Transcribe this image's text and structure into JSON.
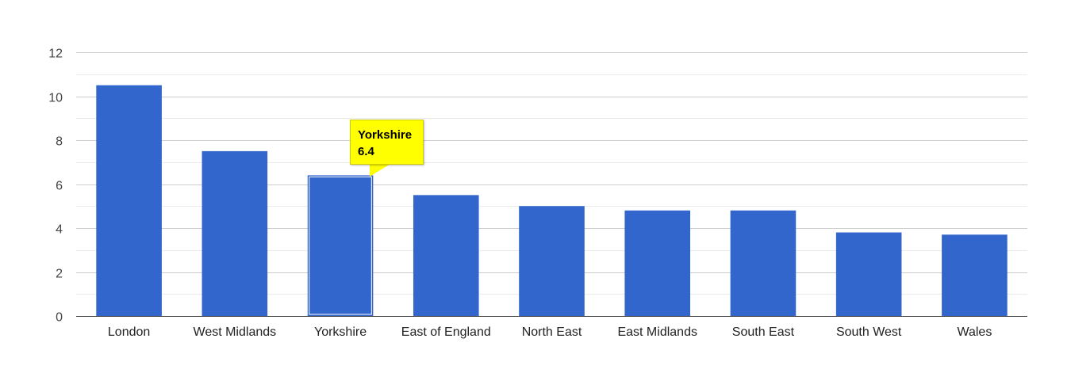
{
  "chart_data": {
    "type": "bar",
    "categories": [
      "London",
      "West Midlands",
      "Yorkshire",
      "East of England",
      "North East",
      "East Midlands",
      "South East",
      "South West",
      "Wales"
    ],
    "values": [
      10.5,
      7.5,
      6.4,
      5.5,
      5.0,
      4.8,
      4.8,
      3.8,
      3.7
    ],
    "ylim": [
      0,
      12
    ],
    "yticks": [
      0,
      2,
      4,
      6,
      8,
      10,
      12
    ],
    "title": "",
    "xlabel": "",
    "ylabel": "",
    "bar_color": "#3366cc",
    "grid": true,
    "highlighted_index": 2
  },
  "tooltip": {
    "category": "Yorkshire",
    "value": "6.4",
    "background": "#ffff00"
  }
}
